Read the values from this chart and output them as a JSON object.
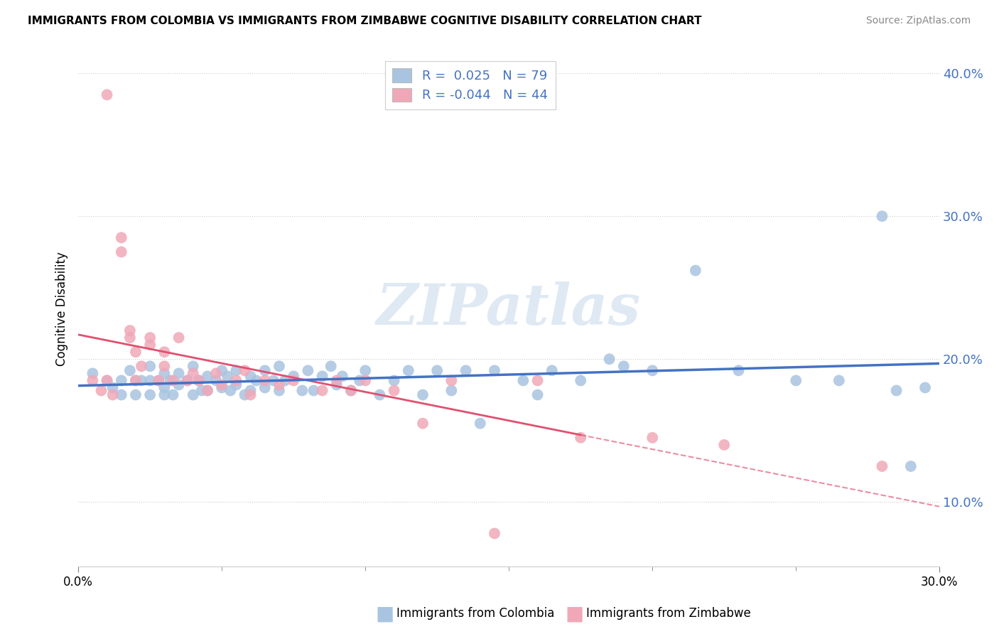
{
  "title": "IMMIGRANTS FROM COLOMBIA VS IMMIGRANTS FROM ZIMBABWE COGNITIVE DISABILITY CORRELATION CHART",
  "source": "Source: ZipAtlas.com",
  "ylabel": "Cognitive Disability",
  "xlabel_colombia": "Immigrants from Colombia",
  "xlabel_zimbabwe": "Immigrants from Zimbabwe",
  "xlim": [
    0.0,
    0.3
  ],
  "ylim": [
    0.055,
    0.415
  ],
  "ytick_values": [
    0.1,
    0.2,
    0.3,
    0.4
  ],
  "R_colombia": 0.025,
  "N_colombia": 79,
  "R_zimbabwe": -0.044,
  "N_zimbabwe": 44,
  "color_colombia": "#a8c4e0",
  "color_zimbabwe": "#f0a8b8",
  "trendline_colombia": "#4472c4",
  "trendline_zimbabwe": "#e05070",
  "watermark": "ZIPatlas",
  "colombia_x": [
    0.005,
    0.01,
    0.012,
    0.015,
    0.015,
    0.018,
    0.02,
    0.02,
    0.022,
    0.025,
    0.025,
    0.025,
    0.028,
    0.03,
    0.03,
    0.03,
    0.032,
    0.033,
    0.035,
    0.035,
    0.038,
    0.04,
    0.04,
    0.042,
    0.043,
    0.045,
    0.045,
    0.048,
    0.05,
    0.05,
    0.052,
    0.053,
    0.055,
    0.055,
    0.058,
    0.06,
    0.06,
    0.062,
    0.065,
    0.065,
    0.068,
    0.07,
    0.07,
    0.072,
    0.075,
    0.078,
    0.08,
    0.082,
    0.085,
    0.088,
    0.09,
    0.092,
    0.095,
    0.098,
    0.1,
    0.105,
    0.11,
    0.115,
    0.12,
    0.125,
    0.13,
    0.135,
    0.14,
    0.145,
    0.155,
    0.16,
    0.165,
    0.175,
    0.185,
    0.19,
    0.2,
    0.215,
    0.23,
    0.25,
    0.265,
    0.28,
    0.285,
    0.29,
    0.295
  ],
  "colombia_y": [
    0.19,
    0.185,
    0.18,
    0.185,
    0.175,
    0.192,
    0.185,
    0.175,
    0.185,
    0.195,
    0.185,
    0.175,
    0.185,
    0.19,
    0.18,
    0.175,
    0.185,
    0.175,
    0.19,
    0.182,
    0.185,
    0.195,
    0.175,
    0.185,
    0.178,
    0.188,
    0.178,
    0.185,
    0.192,
    0.18,
    0.188,
    0.178,
    0.192,
    0.182,
    0.175,
    0.188,
    0.178,
    0.185,
    0.192,
    0.18,
    0.185,
    0.195,
    0.178,
    0.185,
    0.188,
    0.178,
    0.192,
    0.178,
    0.188,
    0.195,
    0.182,
    0.188,
    0.178,
    0.185,
    0.192,
    0.175,
    0.185,
    0.192,
    0.175,
    0.192,
    0.178,
    0.192,
    0.155,
    0.192,
    0.185,
    0.175,
    0.192,
    0.185,
    0.2,
    0.195,
    0.192,
    0.262,
    0.192,
    0.185,
    0.185,
    0.3,
    0.178,
    0.125,
    0.18
  ],
  "zimbabwe_x": [
    0.005,
    0.008,
    0.01,
    0.01,
    0.012,
    0.015,
    0.015,
    0.018,
    0.018,
    0.02,
    0.02,
    0.022,
    0.025,
    0.025,
    0.028,
    0.03,
    0.03,
    0.033,
    0.035,
    0.038,
    0.04,
    0.042,
    0.045,
    0.048,
    0.05,
    0.055,
    0.058,
    0.06,
    0.065,
    0.07,
    0.075,
    0.085,
    0.09,
    0.095,
    0.1,
    0.11,
    0.12,
    0.13,
    0.145,
    0.16,
    0.175,
    0.2,
    0.225,
    0.28
  ],
  "zimbabwe_y": [
    0.185,
    0.178,
    0.385,
    0.185,
    0.175,
    0.285,
    0.275,
    0.215,
    0.22,
    0.205,
    0.185,
    0.195,
    0.21,
    0.215,
    0.185,
    0.195,
    0.205,
    0.185,
    0.215,
    0.185,
    0.19,
    0.185,
    0.178,
    0.19,
    0.182,
    0.185,
    0.192,
    0.175,
    0.185,
    0.182,
    0.185,
    0.178,
    0.185,
    0.178,
    0.185,
    0.178,
    0.155,
    0.185,
    0.078,
    0.185,
    0.145,
    0.145,
    0.14,
    0.125
  ]
}
